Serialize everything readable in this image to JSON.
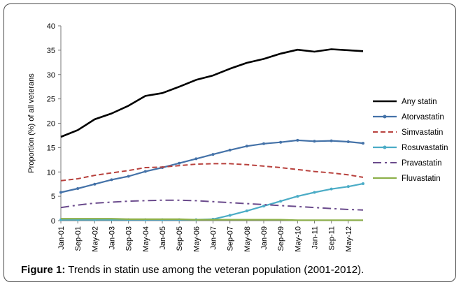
{
  "caption": {
    "label": "Figure 1:",
    "text": "Trends in statin use among the veteran population (2001-2012)."
  },
  "chart_data": {
    "type": "line",
    "title": "",
    "xlabel": "",
    "ylabel": "Proportion (%) of all veterans",
    "ylim": [
      0,
      40
    ],
    "yticks": [
      0,
      5,
      10,
      15,
      20,
      25,
      30,
      35,
      40
    ],
    "x_start": "Jan-01",
    "x_end": "Dec-12",
    "xtick_labels": [
      "Jan-01",
      "Sep-01",
      "May-02",
      "Jan-03",
      "Sep-03",
      "May-04",
      "Jan-05",
      "Sep-05",
      "May-06",
      "Jan-07",
      "Sep-07",
      "May-08",
      "Jan-09",
      "Sep-09",
      "May-10",
      "Jan-11",
      "Sep-11",
      "May-12"
    ],
    "grid": false,
    "legend_position": "right",
    "series": [
      {
        "name": "Any statin",
        "color": "#000000",
        "style": "solid",
        "points": [
          [
            "Jan-01",
            17.2
          ],
          [
            "Sep-01",
            18.6
          ],
          [
            "May-02",
            20.8
          ],
          [
            "Jan-03",
            22.0
          ],
          [
            "Sep-03",
            23.6
          ],
          [
            "May-04",
            25.6
          ],
          [
            "Jan-05",
            26.2
          ],
          [
            "Sep-05",
            27.5
          ],
          [
            "May-06",
            28.9
          ],
          [
            "Jan-07",
            29.8
          ],
          [
            "Sep-07",
            31.2
          ],
          [
            "May-08",
            32.4
          ],
          [
            "Jan-09",
            33.2
          ],
          [
            "Sep-09",
            34.3
          ],
          [
            "May-10",
            35.1
          ],
          [
            "Jan-11",
            34.7
          ],
          [
            "Sep-11",
            35.2
          ],
          [
            "May-12",
            35.0
          ],
          [
            "Dec-12",
            34.8
          ]
        ]
      },
      {
        "name": "Atorvastatin",
        "color": "#4472a8",
        "style": "solid-markers",
        "points": [
          [
            "Jan-01",
            5.8
          ],
          [
            "Sep-01",
            6.6
          ],
          [
            "May-02",
            7.5
          ],
          [
            "Jan-03",
            8.4
          ],
          [
            "Sep-03",
            9.1
          ],
          [
            "May-04",
            10.1
          ],
          [
            "Jan-05",
            10.9
          ],
          [
            "Sep-05",
            11.8
          ],
          [
            "May-06",
            12.7
          ],
          [
            "Jan-07",
            13.6
          ],
          [
            "Sep-07",
            14.5
          ],
          [
            "May-08",
            15.3
          ],
          [
            "Jan-09",
            15.8
          ],
          [
            "Sep-09",
            16.1
          ],
          [
            "May-10",
            16.5
          ],
          [
            "Jan-11",
            16.3
          ],
          [
            "Sep-11",
            16.4
          ],
          [
            "May-12",
            16.2
          ],
          [
            "Dec-12",
            15.9
          ]
        ]
      },
      {
        "name": "Simvastatin",
        "color": "#b8413d",
        "style": "dashed",
        "points": [
          [
            "Jan-01",
            8.2
          ],
          [
            "Sep-01",
            8.6
          ],
          [
            "May-02",
            9.3
          ],
          [
            "Jan-03",
            9.8
          ],
          [
            "Sep-03",
            10.3
          ],
          [
            "May-04",
            10.9
          ],
          [
            "Jan-05",
            11.0
          ],
          [
            "Sep-05",
            11.3
          ],
          [
            "May-06",
            11.6
          ],
          [
            "Jan-07",
            11.7
          ],
          [
            "Sep-07",
            11.7
          ],
          [
            "May-08",
            11.5
          ],
          [
            "Jan-09",
            11.2
          ],
          [
            "Sep-09",
            10.9
          ],
          [
            "May-10",
            10.5
          ],
          [
            "Jan-11",
            10.1
          ],
          [
            "Sep-11",
            9.8
          ],
          [
            "May-12",
            9.4
          ],
          [
            "Dec-12",
            8.9
          ]
        ]
      },
      {
        "name": "Rosuvastatin",
        "color": "#4bacc6",
        "style": "solid-markers",
        "points": [
          [
            "Jan-01",
            0.2
          ],
          [
            "Sep-01",
            0.2
          ],
          [
            "May-02",
            0.2
          ],
          [
            "Jan-03",
            0.2
          ],
          [
            "Sep-03",
            0.2
          ],
          [
            "May-04",
            0.2
          ],
          [
            "Jan-05",
            0.2
          ],
          [
            "Sep-05",
            0.2
          ],
          [
            "May-06",
            0.2
          ],
          [
            "Jan-07",
            0.3
          ],
          [
            "Sep-07",
            1.1
          ],
          [
            "May-08",
            2.0
          ],
          [
            "Jan-09",
            3.0
          ],
          [
            "Sep-09",
            4.0
          ],
          [
            "May-10",
            5.0
          ],
          [
            "Jan-11",
            5.8
          ],
          [
            "Sep-11",
            6.5
          ],
          [
            "May-12",
            7.0
          ],
          [
            "Dec-12",
            7.6
          ]
        ]
      },
      {
        "name": "Pravastatin",
        "color": "#6a4a8c",
        "style": "dashdot",
        "points": [
          [
            "Jan-01",
            2.7
          ],
          [
            "Sep-01",
            3.2
          ],
          [
            "May-02",
            3.6
          ],
          [
            "Jan-03",
            3.8
          ],
          [
            "Sep-03",
            4.0
          ],
          [
            "May-04",
            4.1
          ],
          [
            "Jan-05",
            4.2
          ],
          [
            "Sep-05",
            4.2
          ],
          [
            "May-06",
            4.1
          ],
          [
            "Jan-07",
            3.9
          ],
          [
            "Sep-07",
            3.7
          ],
          [
            "May-08",
            3.5
          ],
          [
            "Jan-09",
            3.3
          ],
          [
            "Sep-09",
            3.1
          ],
          [
            "May-10",
            2.9
          ],
          [
            "Jan-11",
            2.7
          ],
          [
            "Sep-11",
            2.5
          ],
          [
            "May-12",
            2.3
          ],
          [
            "Dec-12",
            2.2
          ]
        ]
      },
      {
        "name": "Fluvastatin",
        "color": "#8db04a",
        "style": "solid",
        "points": [
          [
            "Jan-01",
            0.4
          ],
          [
            "Sep-01",
            0.4
          ],
          [
            "May-02",
            0.4
          ],
          [
            "Jan-03",
            0.4
          ],
          [
            "Sep-03",
            0.3
          ],
          [
            "May-04",
            0.3
          ],
          [
            "Jan-05",
            0.3
          ],
          [
            "Sep-05",
            0.3
          ],
          [
            "May-06",
            0.2
          ],
          [
            "Jan-07",
            0.2
          ],
          [
            "Sep-07",
            0.2
          ],
          [
            "May-08",
            0.2
          ],
          [
            "Jan-09",
            0.2
          ],
          [
            "Sep-09",
            0.2
          ],
          [
            "May-10",
            0.1
          ],
          [
            "Jan-11",
            0.1
          ],
          [
            "Sep-11",
            0.1
          ],
          [
            "May-12",
            0.1
          ],
          [
            "Dec-12",
            0.1
          ]
        ]
      }
    ]
  }
}
